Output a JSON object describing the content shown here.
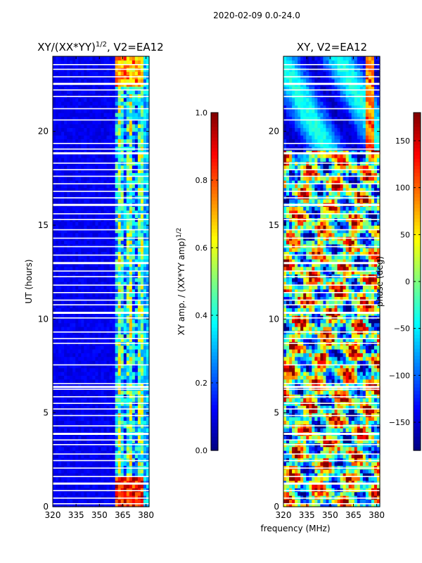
{
  "figure": {
    "suptitle": "2020-02-09 0.0-24.0",
    "xlabel": "frequency (MHz)"
  },
  "colors": {
    "jet": [
      "#00007f",
      "#0000ff",
      "#007fff",
      "#00ffff",
      "#7fff7f",
      "#ffff00",
      "#ff7f00",
      "#ff0000",
      "#7f0000"
    ],
    "gap": "#ffffff",
    "axis": "#000000"
  },
  "chart_data": [
    {
      "type": "heatmap",
      "panel": "amplitude-ratio",
      "title": "XY/(XX*YY)^{1/2}, V2=EA12",
      "title_main": "XY/(XX*YY)",
      "title_sup": "1/2",
      "title_tail": ", V2=EA12",
      "ylabel": "UT (hours)",
      "xlim": [
        320,
        382
      ],
      "ylim": [
        0,
        24
      ],
      "xticks": [
        320,
        335,
        350,
        365,
        380
      ],
      "yticks": [
        0,
        5,
        10,
        15,
        20
      ],
      "colorbar": {
        "label": "XY amp. / (XX*YY amp)^{1/2}",
        "label_main": "XY amp. / (XX*YY amp)",
        "label_sup": "1/2",
        "range": [
          0.0,
          1.0
        ],
        "ticks": [
          "0.0",
          "0.2",
          "0.4",
          "0.6",
          "0.8",
          "1.0"
        ],
        "tick_values": [
          0.0,
          0.2,
          0.4,
          0.6,
          0.8,
          1.0
        ]
      },
      "features": {
        "background_value": 0.08,
        "active_band_mhz": [
          360,
          378
        ],
        "active_band_value": 0.45,
        "hot_corner_top": {
          "hours": [
            22.5,
            24
          ],
          "value": 0.8
        },
        "hot_corner_bottom": {
          "hours": [
            0,
            1.5
          ],
          "value": 0.9
        }
      }
    },
    {
      "type": "heatmap",
      "panel": "phase",
      "title": "XY, V2=EA12",
      "xlim": [
        320,
        382
      ],
      "ylim": [
        0,
        24
      ],
      "xticks": [
        320,
        335,
        350,
        365,
        380
      ],
      "yticks": [
        0,
        5,
        10,
        15,
        20
      ],
      "colorbar": {
        "label": "phase (deg)",
        "range": [
          -180,
          180
        ],
        "ticks": [
          "−150",
          "−100",
          "−50",
          "0",
          "50",
          "100",
          "150"
        ],
        "tick_values": [
          -150,
          -100,
          -50,
          0,
          50,
          100,
          150
        ]
      },
      "features": {
        "smooth_region_hours": [
          19,
          24
        ],
        "smooth_region_value_deg": -110,
        "streak_mhz": 375,
        "noisy_region_hours": [
          0,
          19
        ]
      }
    }
  ],
  "flagged_gaps_hours": [
    0.15,
    0.45,
    0.85,
    1.25,
    1.6,
    2.05,
    2.45,
    2.8,
    3.3,
    3.55,
    3.9,
    4.3,
    4.85,
    5.2,
    5.5,
    5.85,
    6.25,
    6.4,
    6.55,
    7.55,
    8.7,
    8.95,
    9.3,
    10.05,
    10.35,
    10.75,
    11.0,
    11.4,
    11.8,
    12.25,
    12.55,
    13.0,
    13.4,
    13.85,
    14.3,
    14.75,
    15.3,
    15.6,
    16.1,
    16.45,
    16.8,
    17.2,
    17.6,
    17.95,
    18.3,
    18.85,
    19.05,
    19.35,
    20.6,
    21.2,
    21.85,
    22.2,
    22.55,
    22.9,
    23.3,
    23.55
  ]
}
